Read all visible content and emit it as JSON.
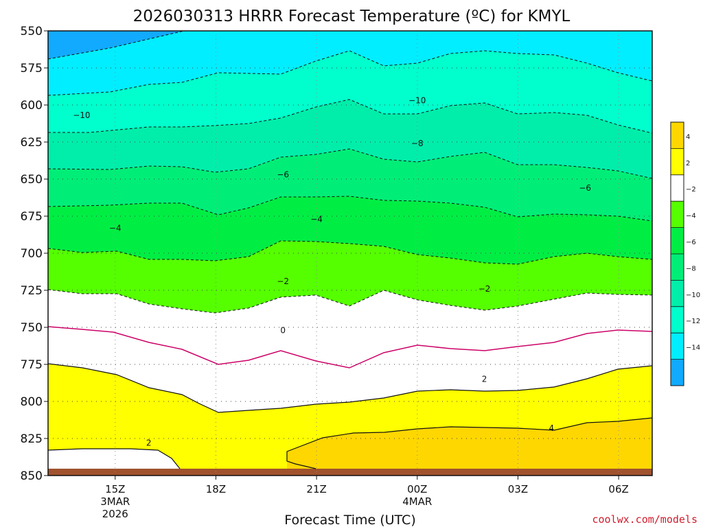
{
  "chart_data": {
    "type": "heatmap",
    "title": "2026030313 HRRR Forecast Temperature (ºC) for KMYL",
    "xlabel": "Forecast Time (UTC)",
    "ylabel": "",
    "x_ticks": [
      {
        "hour": 2,
        "lines": [
          "15Z",
          "3MAR",
          "2026"
        ]
      },
      {
        "hour": 5,
        "lines": [
          "18Z"
        ]
      },
      {
        "hour": 8,
        "lines": [
          "21Z"
        ]
      },
      {
        "hour": 11,
        "lines": [
          "00Z",
          "4MAR"
        ]
      },
      {
        "hour": 14,
        "lines": [
          "03Z"
        ]
      },
      {
        "hour": 17,
        "lines": [
          "06Z"
        ]
      }
    ],
    "x_range_hours": [
      0,
      18
    ],
    "y_ticks": [
      550,
      575,
      600,
      625,
      650,
      675,
      700,
      725,
      750,
      775,
      800,
      825,
      850
    ],
    "y_range_hpa": [
      550,
      850
    ],
    "ground_color": "#a0522d",
    "colorbar": {
      "ticks": [
        "4",
        "2",
        "−2",
        "−4",
        "−6",
        "−8",
        "−10",
        "−12",
        "−14"
      ],
      "bins": [
        {
          "color": "#ffd700"
        },
        {
          "color": "#ffff00"
        },
        {
          "color": "#ffffff"
        },
        {
          "color": "#55ff00"
        },
        {
          "color": "#00ee44"
        },
        {
          "color": "#00ee77"
        },
        {
          "color": "#00eeaa"
        },
        {
          "color": "#00ffcc"
        },
        {
          "color": "#00eeff"
        },
        {
          "color": "#11aaff"
        }
      ]
    },
    "contour_labels": [
      {
        "text": "−10",
        "hour": 1.0,
        "p": 607
      },
      {
        "text": "−10",
        "hour": 11.0,
        "p": 597
      },
      {
        "text": "−8",
        "hour": 11.0,
        "p": 626
      },
      {
        "text": "−6",
        "hour": 7.0,
        "p": 647
      },
      {
        "text": "−6",
        "hour": 16.0,
        "p": 656
      },
      {
        "text": "−4",
        "hour": 2.0,
        "p": 683
      },
      {
        "text": "−4",
        "hour": 8.0,
        "p": 677
      },
      {
        "text": "−2",
        "hour": 7.0,
        "p": 719
      },
      {
        "text": "−2",
        "hour": 13.0,
        "p": 724
      },
      {
        "text": "0",
        "hour": 7.0,
        "p": 752
      },
      {
        "text": "2",
        "hour": 13.0,
        "p": 785
      },
      {
        "text": "2",
        "hour": 3.0,
        "p": 828
      },
      {
        "text": "4",
        "hour": 15.0,
        "p": 818
      }
    ]
  },
  "credit": "coolwx.com/models"
}
